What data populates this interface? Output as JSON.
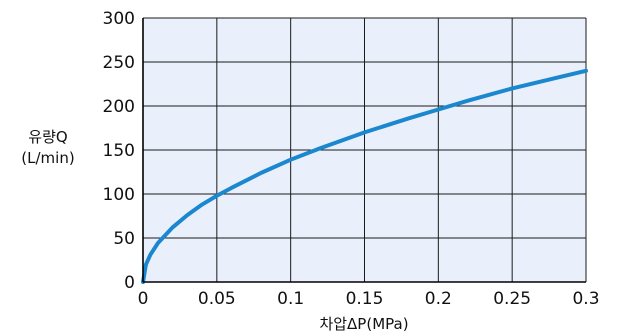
{
  "chart_data": {
    "type": "line",
    "title": "",
    "xlabel": "차압ΔP(MPa)",
    "ylabel_line1": "유량Q",
    "ylabel_line2": "(L/min)",
    "xlim": [
      0,
      0.3
    ],
    "ylim": [
      0,
      300
    ],
    "x_ticks": [
      0,
      0.05,
      0.1,
      0.15,
      0.2,
      0.25,
      0.3
    ],
    "y_ticks": [
      0,
      50,
      100,
      150,
      200,
      250,
      300
    ],
    "x_tick_labels": [
      "0",
      "0.05",
      "0.1",
      "0.15",
      "0.2",
      "0.25",
      "0.3"
    ],
    "y_tick_labels": [
      "0",
      "50",
      "100",
      "150",
      "200",
      "250",
      "300"
    ],
    "grid": true,
    "colors": {
      "plot_background": "#eaf0fb",
      "grid": "#1a1a1a",
      "series": "#1b87cf"
    },
    "series": [
      {
        "x": [
          0,
          0.002,
          0.005,
          0.01,
          0.02,
          0.03,
          0.04,
          0.05,
          0.06,
          0.08,
          0.1,
          0.12,
          0.15,
          0.18,
          0.2,
          0.22,
          0.25,
          0.28,
          0.3
        ],
        "values": [
          0,
          20,
          31,
          44,
          62,
          76,
          88,
          98,
          107,
          124,
          139,
          152,
          170,
          186,
          196,
          206,
          220,
          232,
          240
        ]
      }
    ]
  }
}
